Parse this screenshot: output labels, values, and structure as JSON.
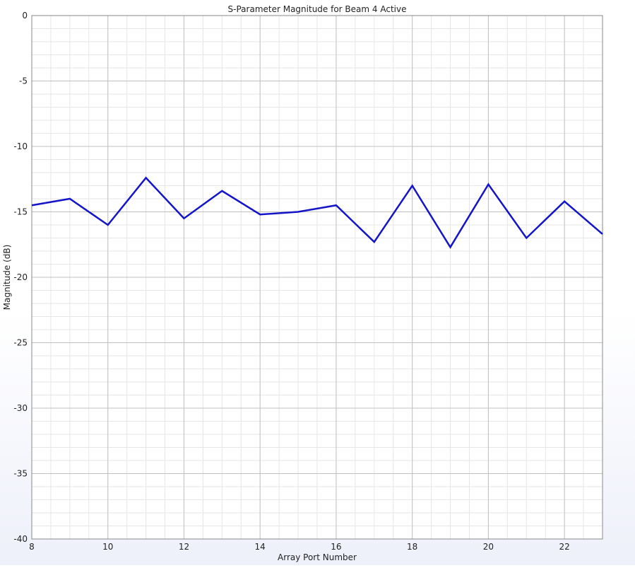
{
  "chart_data": {
    "type": "line",
    "title": "S-Parameter Magnitude for Beam 4 Active",
    "xlabel": "Array Port Number",
    "ylabel": "Magnitude (dB)",
    "xlim": [
      8,
      23
    ],
    "ylim": [
      -40,
      0
    ],
    "x_ticks": [
      8,
      10,
      12,
      14,
      16,
      18,
      20,
      22
    ],
    "y_ticks": [
      0,
      -5,
      -10,
      -15,
      -20,
      -25,
      -30,
      -35,
      -40
    ],
    "x_minor_step": 0.5,
    "y_minor_step": 1,
    "grid": true,
    "series": [
      {
        "color": "#1414c8",
        "x": [
          8,
          9,
          10,
          11,
          12,
          13,
          14,
          15,
          16,
          17,
          18,
          19,
          20,
          21,
          22,
          23
        ],
        "y": [
          -14.5,
          -14.0,
          -16.0,
          -12.4,
          -15.5,
          -13.4,
          -15.2,
          -15.0,
          -14.5,
          -17.3,
          -13.0,
          -17.7,
          -12.9,
          -17.0,
          -14.2,
          -16.7
        ]
      }
    ]
  },
  "colors": {
    "line": "#1414c8",
    "major_grid": "#c0c0c0",
    "minor_grid": "#e6e6e6",
    "frame": "#888888"
  }
}
